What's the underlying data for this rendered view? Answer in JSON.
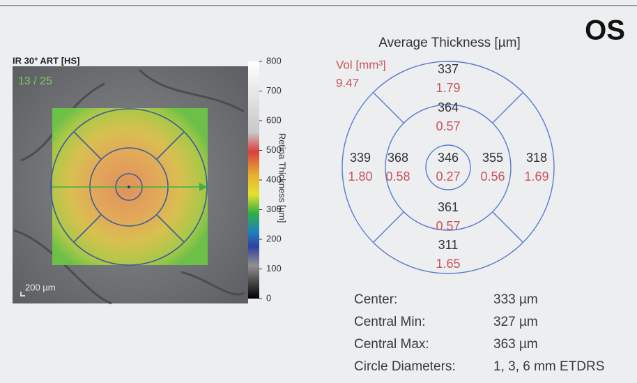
{
  "eye": "OS",
  "image_panel": {
    "title": "IR 30° ART [HS]",
    "frame": "13 / 25",
    "scale_bar": "200 µm"
  },
  "colorbar": {
    "label": "Retina Thickness [µm]",
    "ticks": [
      "800",
      "700",
      "600",
      "500",
      "400",
      "300",
      "200",
      "100",
      "0"
    ]
  },
  "etdrs": {
    "title": "Average Thickness [µm]",
    "volume_label": "Vol [mm³]",
    "total_volume": "9.47",
    "sectors": [
      {
        "thickness": "337",
        "volume": "1.79"
      },
      {
        "thickness": "364",
        "volume": "0.57"
      },
      {
        "thickness": "339",
        "volume": "1.80"
      },
      {
        "thickness": "368",
        "volume": "0.58"
      },
      {
        "thickness": "346",
        "volume": "0.27"
      },
      {
        "thickness": "355",
        "volume": "0.56"
      },
      {
        "thickness": "318",
        "volume": "1.69"
      },
      {
        "thickness": "361",
        "volume": "0.57"
      },
      {
        "thickness": "311",
        "volume": "1.65"
      }
    ]
  },
  "stats": [
    [
      "Center:",
      "333 µm"
    ],
    [
      "Central Min:",
      "327 µm"
    ],
    [
      "Central Max:",
      "363 µm"
    ],
    [
      "Circle Diameters:",
      "1, 3, 6 mm ETDRS"
    ]
  ]
}
